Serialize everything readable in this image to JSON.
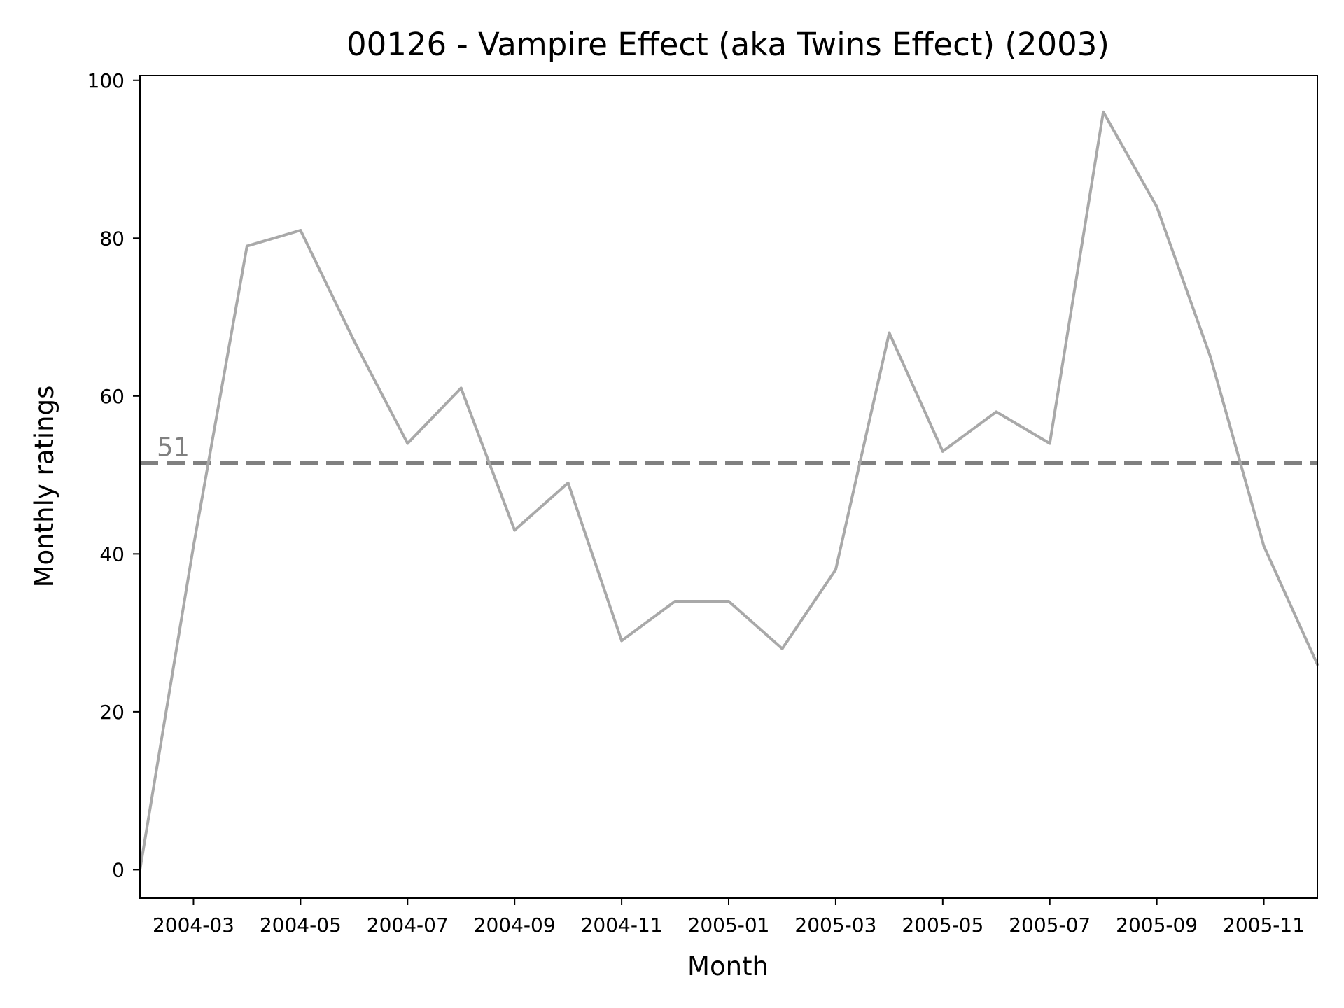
{
  "chart_data": {
    "type": "line",
    "title": "00126 - Vampire Effect (aka Twins Effect) (2003)",
    "xlabel": "Month",
    "ylabel": "Monthly ratings",
    "x": [
      "2004-02",
      "2004-03",
      "2004-04",
      "2004-05",
      "2004-06",
      "2004-07",
      "2004-08",
      "2004-09",
      "2004-10",
      "2004-11",
      "2004-12",
      "2005-01",
      "2005-02",
      "2005-03",
      "2005-04",
      "2005-05",
      "2005-06",
      "2005-07",
      "2005-08",
      "2005-09",
      "2005-10",
      "2005-11",
      "2005-12"
    ],
    "series": [
      {
        "values": [
          0,
          41,
          79,
          81,
          67,
          54,
          61,
          43,
          49,
          29,
          34,
          34,
          28,
          38,
          68,
          53,
          58,
          54,
          96,
          84,
          65,
          41,
          26
        ],
        "color": "#a9a9a9"
      }
    ],
    "xticks": [
      "2004-03",
      "2004-05",
      "2004-07",
      "2004-09",
      "2004-11",
      "2005-01",
      "2005-03",
      "2005-05",
      "2005-07",
      "2005-09",
      "2005-11"
    ],
    "yticks": [
      0,
      20,
      40,
      60,
      80,
      100
    ],
    "ylim": [
      -3.6,
      100.6
    ],
    "xlim": [
      "2004-02",
      "2005-12"
    ],
    "reference_line": {
      "value": 51.5,
      "label": "51",
      "color": "#808080",
      "style": "dashed"
    },
    "grid": false,
    "legend": "none"
  }
}
